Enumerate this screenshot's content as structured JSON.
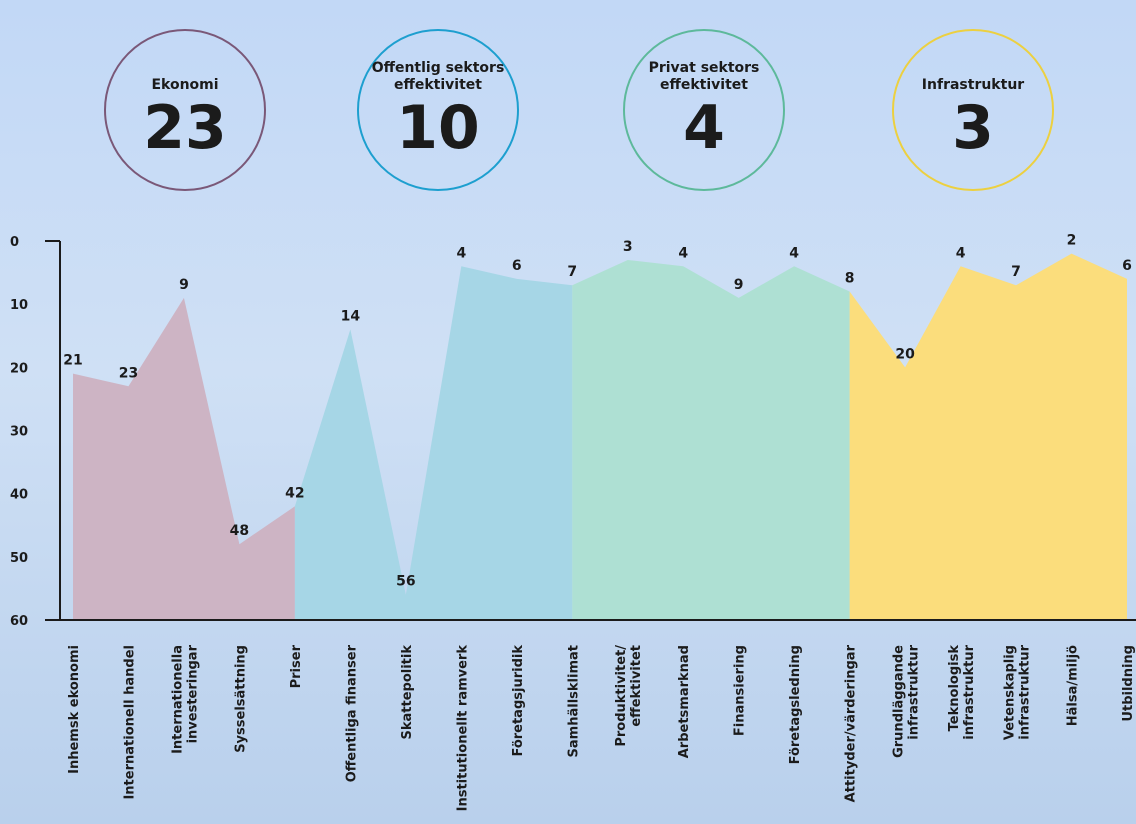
{
  "chart_data": {
    "type": "area",
    "groups": [
      {
        "name": "Ekonomi",
        "rank": 23,
        "ring_color": "#7a5878",
        "fill": "#cdb4c4",
        "start": 0,
        "end": 4
      },
      {
        "name": "Offentlig sektors effektivitet",
        "rank": 10,
        "ring_color": "#1d9fcf",
        "fill": "#a6d6e6",
        "start": 5,
        "end": 9
      },
      {
        "name": "Privat sektors effektivitet",
        "rank": 4,
        "ring_color": "#5db99b",
        "fill": "#aee0d3",
        "start": 10,
        "end": 14
      },
      {
        "name": "Infrastruktur",
        "rank": 3,
        "ring_color": "#ecd040",
        "fill": "#fbdd7c",
        "start": 15,
        "end": 19
      }
    ],
    "categories": [
      [
        "Inhemsk ekonomi"
      ],
      [
        "Internationell handel"
      ],
      [
        "Internationella",
        "investeringar"
      ],
      [
        "Sysselsättning"
      ],
      [
        "Priser"
      ],
      [
        "Offentliga finanser"
      ],
      [
        "Skattepolitik"
      ],
      [
        "Institutionellt ramverk"
      ],
      [
        "Företagsjuridik"
      ],
      [
        "Samhällsklimat"
      ],
      [
        "Produktivitet/",
        "effektivitet"
      ],
      [
        "Arbetsmarknad"
      ],
      [
        "Finansiering"
      ],
      [
        "Företagsledning"
      ],
      [
        "Attityder/värderingar"
      ],
      [
        "Grundläggande",
        "infrastruktur"
      ],
      [
        "Teknologisk",
        "infrastruktur"
      ],
      [
        "Vetenskaplig",
        "infrastruktur"
      ],
      [
        "Hälsa/miljö"
      ],
      [
        "Utbildning"
      ]
    ],
    "values": [
      21,
      23,
      9,
      48,
      42,
      14,
      56,
      4,
      6,
      7,
      3,
      4,
      9,
      4,
      8,
      20,
      4,
      7,
      2,
      6
    ],
    "ylim": [
      0,
      60
    ],
    "y_inverted": true,
    "yticks": [
      0,
      10,
      20,
      30,
      40,
      50,
      60
    ]
  }
}
